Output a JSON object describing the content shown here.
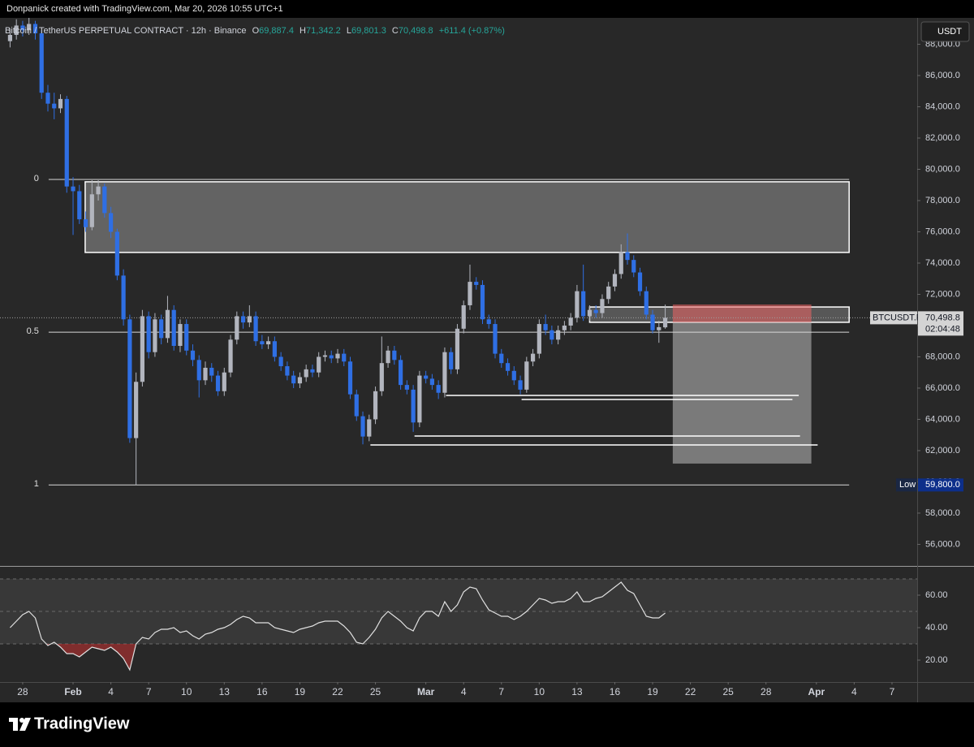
{
  "header": {
    "title": "Donpanick created with TradingView.com, Mar 20, 2026 10:55 UTC+1"
  },
  "chart_data": {
    "type": "candlestick",
    "symbol_title": "Bitcoin / TetherUS PERPETUAL CONTRACT · 12h · Binance",
    "ohlc_legend": [
      {
        "key": "O",
        "value": "69,887.4"
      },
      {
        "key": "H",
        "value": "71,342.2"
      },
      {
        "key": "L",
        "value": "69,801.3"
      },
      {
        "key": "C",
        "value": "70,498.8"
      }
    ],
    "change": "+611.4 (+0.87%)",
    "currency_button": "USDT",
    "up_color": "#b2b5be",
    "down_color": "#2f6fe4",
    "x": [
      -1,
      -0.5,
      0,
      0.5,
      1,
      1.5,
      2,
      2.5,
      3,
      3.5,
      4,
      4.5,
      5,
      5.5,
      6,
      6.5,
      7,
      7.5,
      8,
      8.5,
      9,
      9.5,
      10,
      10.5,
      11,
      11.5,
      12,
      12.5,
      13,
      13.5,
      14,
      14.5,
      15,
      15.5,
      16,
      16.5,
      17,
      17.5,
      18,
      18.5,
      19,
      19.5,
      20,
      20.5,
      21,
      21.5,
      22,
      22.5,
      23,
      23.5,
      24,
      24.5,
      25,
      25.5,
      26,
      26.5,
      27,
      27.5,
      28,
      28.5,
      29,
      29.5,
      30,
      30.5,
      31,
      31.5,
      32,
      32.5,
      33,
      33.5,
      34,
      34.5,
      35,
      35.5,
      36,
      36.5,
      37,
      37.5,
      38,
      38.5,
      39,
      39.5,
      40,
      40.5,
      41,
      41.5,
      42,
      42.5,
      43,
      43.5,
      44,
      44.5,
      45,
      45.5,
      46,
      46.5,
      47,
      47.5,
      48,
      48.5,
      49,
      49.5,
      50,
      50.5,
      51
    ],
    "open": [
      88200,
      88600,
      89200,
      88900,
      89300,
      88700,
      84900,
      84200,
      83900,
      84500,
      78900,
      78600,
      76800,
      76300,
      78400,
      78900,
      77200,
      76000,
      73200,
      70400,
      62800,
      66400,
      70600,
      68300,
      70400,
      69200,
      71000,
      68700,
      70100,
      68400,
      67800,
      66500,
      67300,
      66800,
      65800,
      67000,
      69100,
      70600,
      70200,
      70600,
      69000,
      68800,
      69000,
      68000,
      67400,
      66800,
      66300,
      66700,
      67200,
      67000,
      68000,
      68100,
      67900,
      68200,
      67700,
      65600,
      64200,
      62900,
      64000,
      65800,
      67600,
      68400,
      67800,
      66200,
      65900,
      63800,
      66800,
      66600,
      66200,
      65700,
      68300,
      67200,
      69800,
      71300,
      72800,
      72600,
      70400,
      70100,
      68200,
      67600,
      67100,
      66500,
      65900,
      67700,
      68200,
      70100,
      69700,
      69100,
      69700,
      70000,
      70500,
      72200,
      70600,
      71000,
      70800,
      71700,
      72500,
      73300,
      74700,
      74200,
      73400,
      72200,
      70700,
      69700,
      69887.4
    ],
    "high": [
      89000,
      89600,
      89500,
      89700,
      89500,
      88900,
      85400,
      84900,
      84800,
      84700,
      79500,
      79000,
      77300,
      79300,
      79300,
      79100,
      77600,
      76200,
      73600,
      70700,
      67000,
      71000,
      70900,
      70800,
      70700,
      71900,
      71300,
      70400,
      70400,
      68800,
      68100,
      67700,
      67600,
      67100,
      67300,
      69400,
      70900,
      70900,
      71300,
      70900,
      69400,
      69300,
      69300,
      68300,
      67700,
      67100,
      67000,
      67500,
      67500,
      68300,
      68400,
      68400,
      68500,
      68500,
      68000,
      65900,
      64500,
      64300,
      66100,
      69300,
      68700,
      68700,
      68100,
      66500,
      66200,
      67100,
      67100,
      66900,
      66500,
      68600,
      68600,
      70100,
      71600,
      73900,
      73100,
      72900,
      70700,
      70400,
      68500,
      67900,
      67400,
      66800,
      68000,
      68500,
      70400,
      70700,
      70000,
      70000,
      70300,
      70800,
      72600,
      73900,
      71300,
      71300,
      72000,
      72800,
      73600,
      75200,
      75900,
      74500,
      73700,
      72500,
      71000,
      70300,
      71342.2
    ],
    "low": [
      87800,
      88300,
      88500,
      88600,
      88300,
      84500,
      83700,
      83200,
      83600,
      78500,
      75800,
      76500,
      76000,
      76100,
      78000,
      76900,
      75600,
      72900,
      70000,
      62500,
      59800,
      66100,
      67900,
      68000,
      68800,
      68900,
      68400,
      68300,
      68100,
      67400,
      65400,
      66200,
      66400,
      65500,
      65500,
      66700,
      68800,
      69800,
      69900,
      68700,
      68500,
      68500,
      67700,
      67100,
      66500,
      66000,
      66000,
      66400,
      66700,
      66700,
      67700,
      67600,
      67600,
      67400,
      65300,
      63900,
      62400,
      62600,
      63700,
      65500,
      67300,
      67500,
      65900,
      65600,
      63200,
      63500,
      66300,
      65900,
      65300,
      65400,
      66900,
      66900,
      69500,
      71000,
      72300,
      70100,
      69800,
      67900,
      67300,
      66800,
      66200,
      65600,
      65700,
      67400,
      67900,
      69400,
      68800,
      68800,
      69400,
      69700,
      70200,
      70300,
      70300,
      70500,
      70500,
      71400,
      72200,
      73000,
      73900,
      73100,
      71900,
      70400,
      69500,
      68900,
      69801.3
    ],
    "close": [
      88600,
      89200,
      88900,
      89300,
      88700,
      84900,
      84200,
      83900,
      84500,
      78900,
      78600,
      76800,
      76300,
      78400,
      78900,
      77200,
      76000,
      73200,
      70400,
      62800,
      66400,
      70600,
      68300,
      70400,
      69200,
      71000,
      68700,
      70100,
      68400,
      67800,
      66500,
      67300,
      66800,
      65800,
      67000,
      69100,
      70600,
      70200,
      70600,
      69000,
      68800,
      69000,
      68000,
      67400,
      66800,
      66300,
      66700,
      67200,
      67000,
      68000,
      68100,
      67900,
      68200,
      67700,
      65600,
      64200,
      62900,
      64000,
      65800,
      67600,
      68400,
      67800,
      66200,
      65900,
      63800,
      66800,
      66600,
      66200,
      65700,
      68300,
      67200,
      69800,
      71300,
      72800,
      72600,
      70400,
      70100,
      68200,
      67600,
      67100,
      66500,
      65900,
      67700,
      68200,
      70100,
      69700,
      69100,
      69700,
      70000,
      70500,
      72200,
      70600,
      71000,
      70800,
      71700,
      72500,
      73300,
      74700,
      74200,
      73400,
      72200,
      70700,
      69700,
      69900,
      70498.8
    ],
    "xlim": [
      -1.8,
      71.0
    ],
    "xticks": [
      {
        "value": 0,
        "label": "28"
      },
      {
        "value": 4,
        "label": "Feb"
      },
      {
        "value": 7,
        "label": "4"
      },
      {
        "value": 10,
        "label": "7"
      },
      {
        "value": 13,
        "label": "10"
      },
      {
        "value": 16,
        "label": "13"
      },
      {
        "value": 19,
        "label": "16"
      },
      {
        "value": 22,
        "label": "19"
      },
      {
        "value": 25,
        "label": "22"
      },
      {
        "value": 28,
        "label": "25"
      },
      {
        "value": 32,
        "label": "Mar"
      },
      {
        "value": 35,
        "label": "4"
      },
      {
        "value": 38,
        "label": "7"
      },
      {
        "value": 41,
        "label": "10"
      },
      {
        "value": 44,
        "label": "13"
      },
      {
        "value": 47,
        "label": "16"
      },
      {
        "value": 50,
        "label": "19"
      },
      {
        "value": 53,
        "label": "22"
      },
      {
        "value": 56,
        "label": "25"
      },
      {
        "value": 59,
        "label": "28"
      },
      {
        "value": 63,
        "label": "Apr"
      },
      {
        "value": 66,
        "label": "4"
      },
      {
        "value": 69,
        "label": "7"
      }
    ],
    "ylim": [
      54620,
      89690
    ],
    "yticks": [
      {
        "value": 56000,
        "label": "56,000.0"
      },
      {
        "value": 58000,
        "label": "58,000.0"
      },
      {
        "value": 60000,
        "label": "60,000.0"
      },
      {
        "value": 62000,
        "label": "62,000.0"
      },
      {
        "value": 64000,
        "label": "64,000.0"
      },
      {
        "value": 66000,
        "label": "66,000.0"
      },
      {
        "value": 68000,
        "label": "68,000.0"
      },
      {
        "value": 70000,
        "label": "70,000.0"
      },
      {
        "value": 72000,
        "label": "72,000.0"
      },
      {
        "value": 74000,
        "label": "74,000.0"
      },
      {
        "value": 76000,
        "label": "76,000.0"
      },
      {
        "value": 78000,
        "label": "78,000.0"
      },
      {
        "value": 80000,
        "label": "80,000.0"
      },
      {
        "value": 82000,
        "label": "82,000.0"
      },
      {
        "value": 84000,
        "label": "84,000.0"
      },
      {
        "value": 86000,
        "label": "86,000.0"
      },
      {
        "value": 88000,
        "label": "88,000.0"
      }
    ],
    "last_price": {
      "symbol": "BTCUSDT.P",
      "value": 70498.8,
      "label": "70,498.8",
      "countdown": "02:04:48"
    },
    "low_marker": {
      "label": "Low",
      "value": 59800,
      "value_label": "59,800.0"
    },
    "fib_levels": {
      "x": [
        2.06,
        65.6
      ],
      "levels": [
        {
          "label": 0,
          "value": 79350
        },
        {
          "label": 0.5,
          "value": 69575
        },
        {
          "label": 1,
          "value": 59800
        }
      ]
    },
    "drawings": {
      "rectangles": [
        {
          "x": [
            4.96,
            65.6
          ],
          "y": [
            74680,
            79200
          ],
          "fill": "rgba(255,255,255,0.28)",
          "stroke": "#ffffff"
        },
        {
          "x": [
            45.0,
            65.6
          ],
          "y": [
            70210,
            71190
          ],
          "fill": "rgba(255,255,255,0.22)",
          "stroke": "#ffffff"
        },
        {
          "x": [
            51.6,
            62.6
          ],
          "y": [
            70210,
            71350
          ],
          "fill": "rgba(239,100,100,0.55)",
          "stroke": "none"
        },
        {
          "x": [
            51.6,
            62.6
          ],
          "y": [
            61170,
            70210
          ],
          "fill": "rgba(190,190,190,0.55)",
          "stroke": "none"
        }
      ],
      "lines": [
        {
          "x": [
            33.6,
            61.6
          ],
          "y": 65530
        },
        {
          "x": [
            39.6,
            61.1
          ],
          "y": 65270
        },
        {
          "x": [
            31.1,
            61.7
          ],
          "y": 62935
        },
        {
          "x": [
            27.6,
            63.1
          ],
          "y": 62360
        }
      ]
    },
    "rsi": {
      "values": [
        40,
        44,
        48,
        50,
        46,
        33,
        29,
        31,
        28,
        24,
        24,
        22,
        25,
        28,
        27,
        26,
        28,
        25,
        21,
        14,
        30,
        34,
        33,
        37,
        39,
        39,
        40,
        37,
        38,
        35,
        33,
        36,
        37,
        39,
        40,
        42,
        45,
        47,
        46,
        43,
        43,
        43,
        40,
        39,
        38,
        37,
        39,
        40,
        41,
        43,
        44,
        44,
        44,
        41,
        37,
        31,
        30,
        34,
        39,
        46,
        50,
        47,
        44,
        40,
        38,
        46,
        50,
        50,
        47,
        56,
        50,
        54,
        62,
        65,
        64,
        57,
        51,
        49,
        47,
        47,
        45,
        47,
        50,
        54,
        58,
        57,
        55,
        56,
        56,
        58,
        62,
        56,
        56,
        58,
        59,
        62,
        65,
        68,
        63,
        61,
        54,
        47,
        46,
        46,
        49
      ],
      "ylim": [
        6.5,
        77.5
      ],
      "yticks": [
        {
          "value": 20,
          "label": "20.00"
        },
        {
          "value": 40,
          "label": "40.00"
        },
        {
          "value": 60,
          "label": "60.00"
        }
      ],
      "bands": [
        30,
        50,
        70
      ],
      "color": "#e0e0e0",
      "oversold_color": "rgba(200,50,50,0.55)"
    }
  },
  "footer": {
    "brand": "TradingView"
  }
}
